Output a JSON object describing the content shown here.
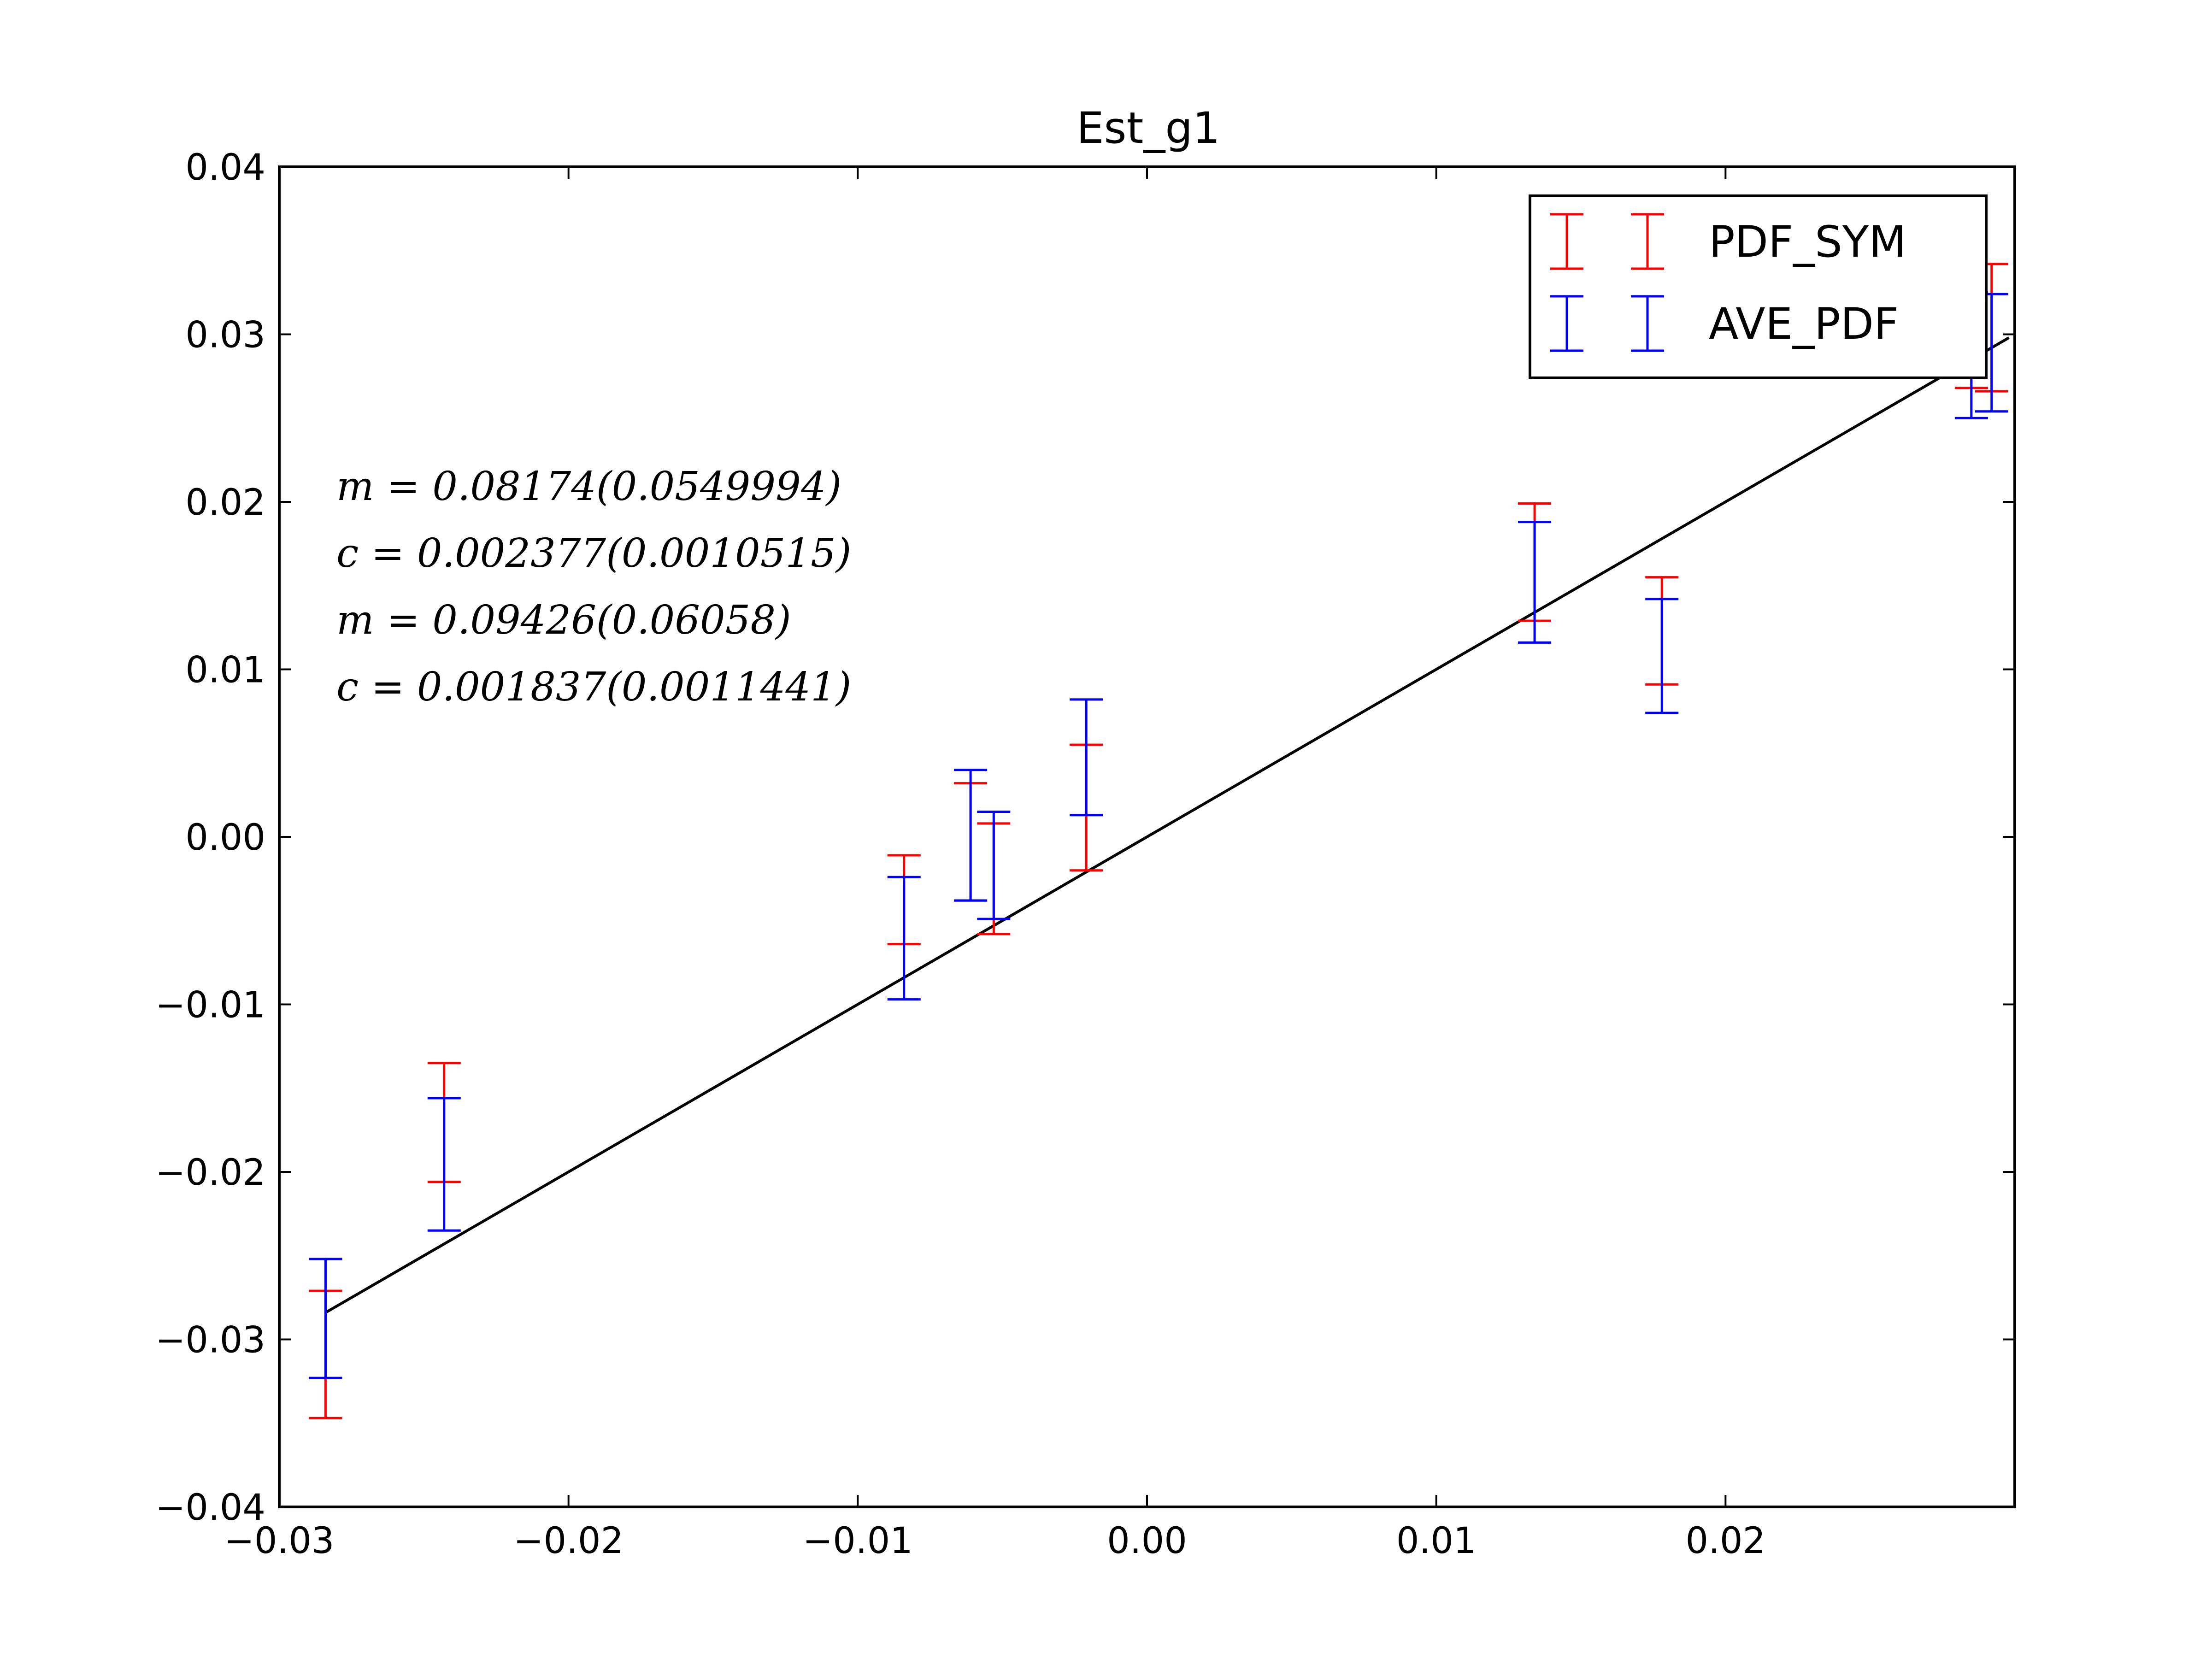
{
  "chart_data": {
    "type": "scatter",
    "title": "Est_g1",
    "xlabel": "",
    "ylabel": "",
    "xlim": [
      -0.03,
      0.03
    ],
    "ylim": [
      -0.04,
      0.04
    ],
    "x_ticks": [
      -0.03,
      -0.02,
      -0.01,
      0.0,
      0.01,
      0.02
    ],
    "x_tick_labels": [
      "−0.03",
      "−0.02",
      "−0.01",
      "0.00",
      "0.01",
      "0.02"
    ],
    "y_ticks": [
      -0.04,
      -0.03,
      -0.02,
      -0.01,
      0.0,
      0.01,
      0.02,
      0.03,
      0.04
    ],
    "y_tick_labels": [
      "−0.04",
      "−0.03",
      "−0.02",
      "−0.01",
      "0.00",
      "0.01",
      "0.02",
      "0.03",
      "0.04"
    ],
    "grid": false,
    "legend_position": "top-right",
    "series": [
      {
        "name": "PDF_SYM",
        "color": "#ff0000",
        "kind": "errorbar",
        "points": [
          {
            "x": -0.0284,
            "low": -0.0347,
            "high": -0.0271
          },
          {
            "x": -0.0243,
            "low": -0.0206,
            "high": -0.0135
          },
          {
            "x": -0.0084,
            "low": -0.0064,
            "high": -0.0011
          },
          {
            "x": -0.0061,
            "low": -0.0038,
            "high": 0.0032
          },
          {
            "x": -0.0053,
            "low": -0.0058,
            "high": 0.0008
          },
          {
            "x": -0.0021,
            "low": -0.002,
            "high": 0.0055
          },
          {
            "x": 0.0134,
            "low": 0.0129,
            "high": 0.0199
          },
          {
            "x": 0.0178,
            "low": 0.0091,
            "high": 0.0155
          },
          {
            "x": 0.0285,
            "low": 0.0268,
            "high": 0.0342
          },
          {
            "x": 0.0292,
            "low": 0.0266,
            "high": 0.0342
          }
        ]
      },
      {
        "name": "AVE_PDF",
        "color": "#0000ff",
        "kind": "errorbar",
        "points": [
          {
            "x": -0.0284,
            "low": -0.0323,
            "high": -0.0252
          },
          {
            "x": -0.0243,
            "low": -0.0235,
            "high": -0.0156
          },
          {
            "x": -0.0084,
            "low": -0.0097,
            "high": -0.0024
          },
          {
            "x": -0.0061,
            "low": -0.0038,
            "high": 0.004
          },
          {
            "x": -0.0053,
            "low": -0.0049,
            "high": 0.0015
          },
          {
            "x": -0.0021,
            "low": 0.0013,
            "high": 0.0082
          },
          {
            "x": 0.0134,
            "low": 0.0116,
            "high": 0.0188
          },
          {
            "x": 0.0178,
            "low": 0.0074,
            "high": 0.0142
          },
          {
            "x": 0.0285,
            "low": 0.025,
            "high": 0.0325
          },
          {
            "x": 0.0292,
            "low": 0.0254,
            "high": 0.0324
          }
        ]
      }
    ],
    "reference_line": {
      "color": "#000000",
      "x": [
        -0.0284,
        0.0298
      ],
      "y": [
        -0.0284,
        0.0298
      ]
    },
    "annotations": [
      "m = 0.08174(0.0549994)",
      "c = 0.002377(0.0010515)",
      "m = 0.09426(0.06058)",
      "c = 0.001837(0.0011441)"
    ]
  }
}
